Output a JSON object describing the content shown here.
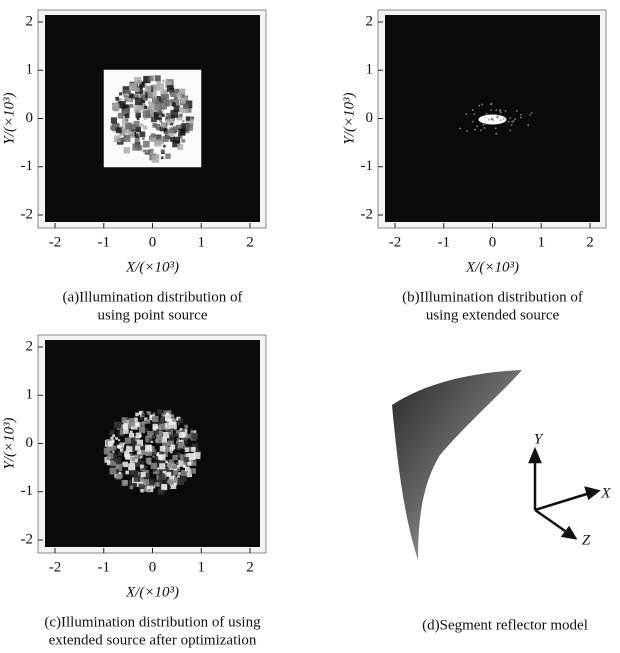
{
  "panels": [
    {
      "xticks": [
        "-2",
        "-1",
        "0",
        "1",
        "2"
      ],
      "yticks": [
        "2",
        "1",
        "0",
        "-1",
        "-2"
      ],
      "xlabel": "X/(×10³)",
      "ylabel": "Y/(×10³)",
      "caption": [
        "(a)Illumination distribution of",
        "using point source"
      ]
    },
    {
      "xticks": [
        "-2",
        "-1",
        "0",
        "1",
        "2"
      ],
      "yticks": [
        "2",
        "1",
        "0",
        "-1",
        "-2"
      ],
      "xlabel": "X/(×10³)",
      "ylabel": "Y/(×10³)",
      "caption": [
        "(b)Illumination distribution of",
        "using extended source"
      ]
    },
    {
      "xticks": [
        "-2",
        "-1",
        "0",
        "1",
        "2"
      ],
      "yticks": [
        "2",
        "1",
        "0",
        "-1",
        "-2"
      ],
      "xlabel": "X/(×10³)",
      "ylabel": "Y/(×10³)",
      "caption": [
        "(c)Illumination distribution of using",
        "extended source after optimization"
      ]
    }
  ],
  "model": {
    "axes": [
      "Y",
      "X",
      "Z"
    ],
    "caption": "(d)Segment reflector model"
  }
}
